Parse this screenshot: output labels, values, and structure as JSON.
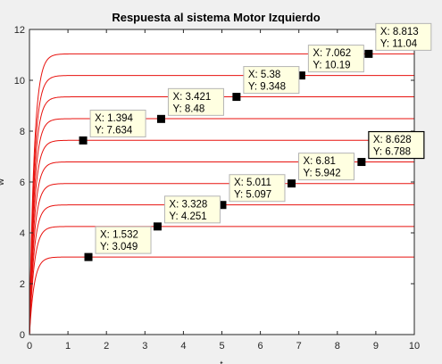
{
  "chart_data": {
    "type": "line",
    "title": "Respuesta al sistema Motor Izquierdo",
    "xlabel": "t",
    "ylabel": "w",
    "xlim": [
      0,
      10
    ],
    "ylim": [
      0,
      12
    ],
    "xticks": [
      "0",
      "1",
      "2",
      "3",
      "4",
      "5",
      "6",
      "7",
      "8",
      "9",
      "10"
    ],
    "yticks": [
      "0",
      "2",
      "4",
      "6",
      "8",
      "10",
      "12"
    ],
    "grid": false,
    "line_color": "#e8120e",
    "steady_states": [
      3.05,
      4.25,
      5.1,
      5.94,
      6.79,
      7.64,
      8.49,
      9.35,
      10.19,
      11.04
    ],
    "data_tips": [
      {
        "x": 1.532,
        "y": 3.049,
        "x_label": "X: 1.532",
        "y_label": "Y: 3.049",
        "selected": false
      },
      {
        "x": 3.328,
        "y": 4.251,
        "x_label": "X: 3.328",
        "y_label": "Y: 4.251",
        "selected": false
      },
      {
        "x": 5.011,
        "y": 5.097,
        "x_label": "X: 5.011",
        "y_label": "Y: 5.097",
        "selected": false
      },
      {
        "x": 6.81,
        "y": 5.942,
        "x_label": "X: 6.81",
        "y_label": "Y: 5.942",
        "selected": false
      },
      {
        "x": 8.628,
        "y": 6.788,
        "x_label": "X: 8.628",
        "y_label": "Y: 6.788",
        "selected": true
      },
      {
        "x": 1.394,
        "y": 7.634,
        "x_label": "X: 1.394",
        "y_label": "Y: 7.634",
        "selected": false
      },
      {
        "x": 3.421,
        "y": 8.48,
        "x_label": "X: 3.421",
        "y_label": "Y: 8.48",
        "selected": false
      },
      {
        "x": 5.38,
        "y": 9.348,
        "x_label": "X: 5.38",
        "y_label": "Y: 9.348",
        "selected": false
      },
      {
        "x": 7.062,
        "y": 10.19,
        "x_label": "X: 7.062",
        "y_label": "Y: 10.19",
        "selected": false
      },
      {
        "x": 8.813,
        "y": 11.04,
        "x_label": "X: 8.813",
        "y_label": "Y: 11.04",
        "selected": false
      }
    ]
  }
}
